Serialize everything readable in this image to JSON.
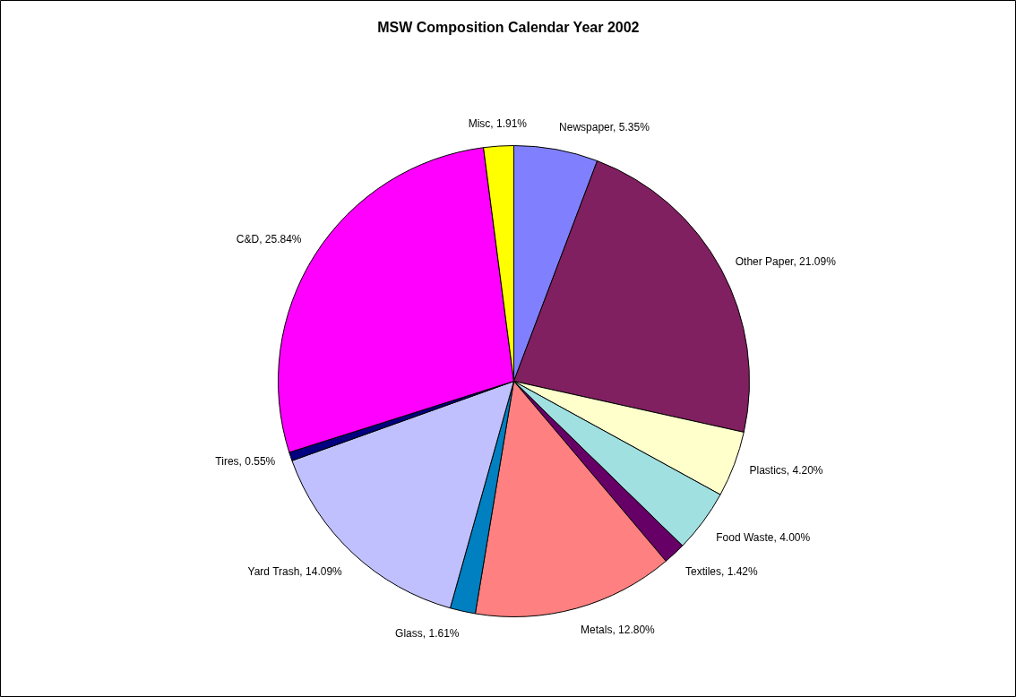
{
  "chart_data": {
    "type": "pie",
    "title": "MSW Composition Calendar Year 2002",
    "categories": [
      "Newspaper",
      "Other Paper",
      "Plastics",
      "Food Waste",
      "Textiles",
      "Metals",
      "Glass",
      "Yard Trash",
      "Tires",
      "C&D",
      "Misc"
    ],
    "values": [
      5.35,
      21.09,
      4.2,
      4.0,
      1.42,
      12.8,
      1.61,
      14.09,
      0.55,
      25.84,
      1.91
    ],
    "value_labels": [
      "5.35%",
      "21.09%",
      "4.20%",
      "4.00%",
      "1.42%",
      "12.80%",
      "1.61%",
      "14.09%",
      "0.55%",
      "25.84%",
      "1.91%"
    ],
    "colors": [
      "#8080ff",
      "#802060",
      "#ffffcc",
      "#a0e0e0",
      "#660066",
      "#ff8080",
      "#0080c0",
      "#c0c0ff",
      "#000080",
      "#ff00ff",
      "#ffff00"
    ]
  }
}
